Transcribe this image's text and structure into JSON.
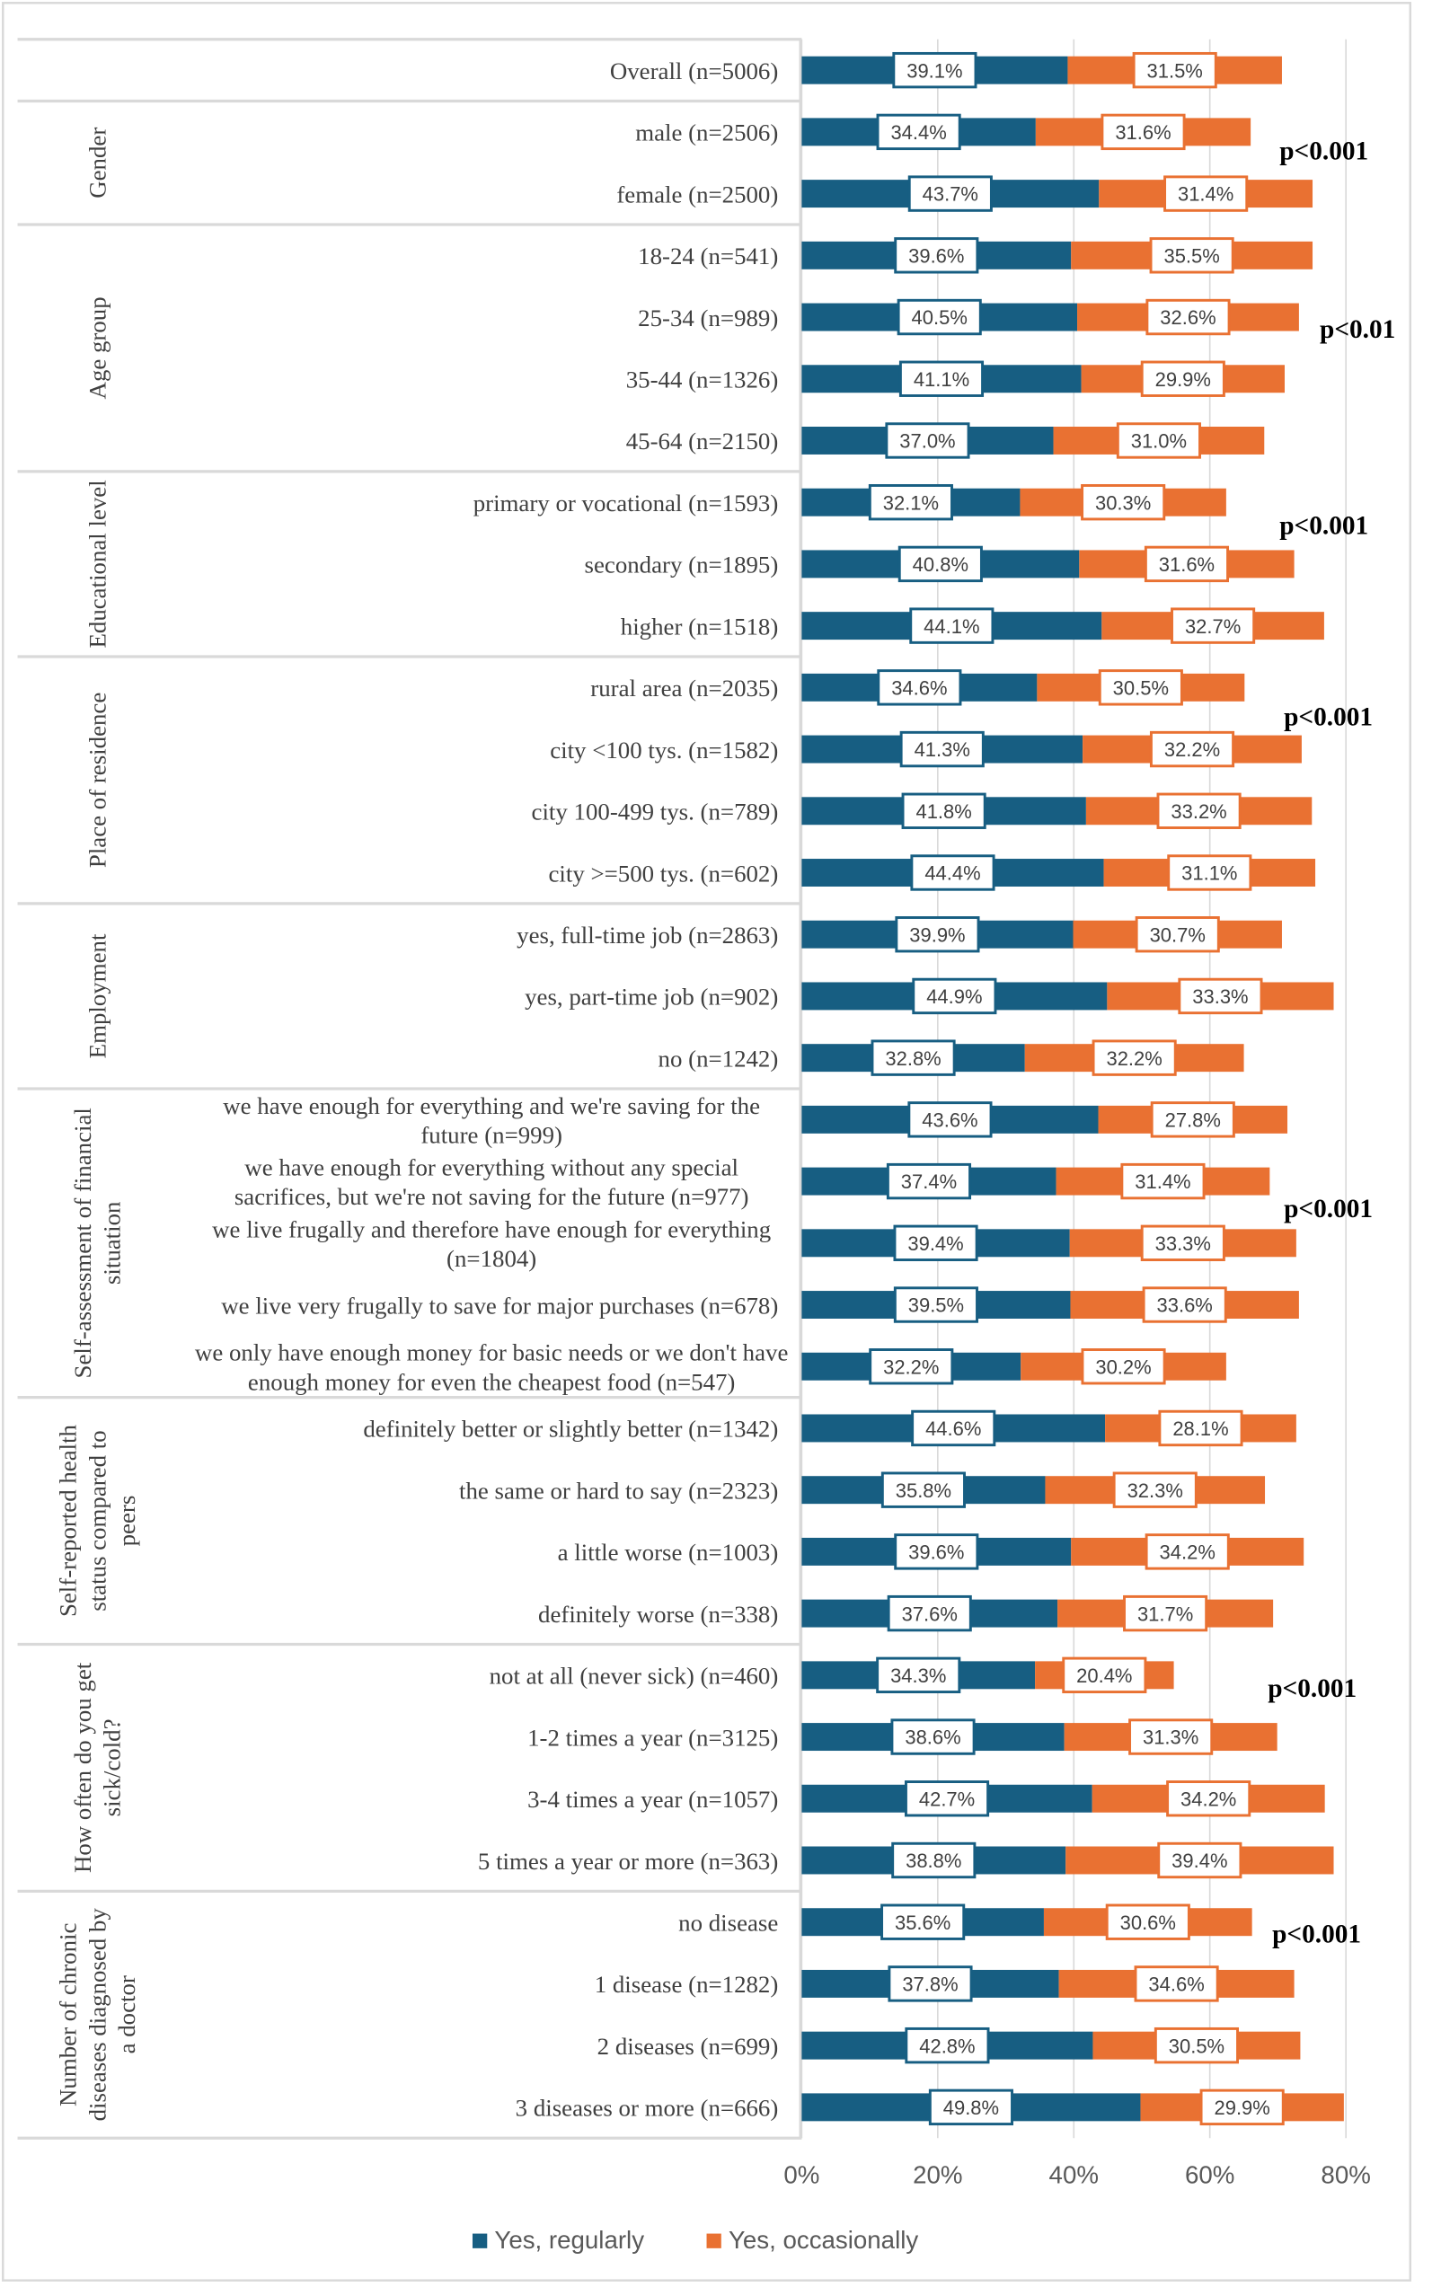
{
  "chart_data": {
    "type": "bar",
    "orientation": "horizontal",
    "stacked": true,
    "xlim": [
      0,
      80
    ],
    "x_ticks": [
      "0%",
      "20%",
      "40%",
      "60%",
      "80%"
    ],
    "grid": true,
    "legend_placement": "bottom",
    "series": [
      {
        "name": "Yes, regularly",
        "color": "#175E82"
      },
      {
        "name": "Yes, occasionally",
        "color": "#E97132"
      }
    ],
    "groups": [
      {
        "label": [],
        "p_value": "",
        "rows": [
          {
            "label": [
              "Overall (n=5006)"
            ],
            "regularly": 39.1,
            "occasionally": 31.5
          }
        ]
      },
      {
        "label": [
          "Gender"
        ],
        "p_value": "p<0.001",
        "rows": [
          {
            "label": [
              "male (n=2506)"
            ],
            "regularly": 34.4,
            "occasionally": 31.6
          },
          {
            "label": [
              "female (n=2500)"
            ],
            "regularly": 43.7,
            "occasionally": 31.4
          }
        ]
      },
      {
        "label": [
          "Age group"
        ],
        "p_value": "p<0.01",
        "rows": [
          {
            "label": [
              "18-24 (n=541)"
            ],
            "regularly": 39.6,
            "occasionally": 35.5
          },
          {
            "label": [
              "25-34 (n=989)"
            ],
            "regularly": 40.5,
            "occasionally": 32.6
          },
          {
            "label": [
              "35-44 (n=1326)"
            ],
            "regularly": 41.1,
            "occasionally": 29.9
          },
          {
            "label": [
              "45-64 (n=2150)"
            ],
            "regularly": 37.0,
            "occasionally": 31.0
          }
        ]
      },
      {
        "label": [
          "Educational level"
        ],
        "p_value": "p<0.001",
        "rows": [
          {
            "label": [
              "primary or vocational (n=1593)"
            ],
            "regularly": 32.1,
            "occasionally": 30.3
          },
          {
            "label": [
              "secondary (n=1895)"
            ],
            "regularly": 40.8,
            "occasionally": 31.6
          },
          {
            "label": [
              "higher (n=1518)"
            ],
            "regularly": 44.1,
            "occasionally": 32.7
          }
        ]
      },
      {
        "label": [
          "Place of residence"
        ],
        "p_value": "p<0.001",
        "rows": [
          {
            "label": [
              "rural area (n=2035)"
            ],
            "regularly": 34.6,
            "occasionally": 30.5
          },
          {
            "label": [
              "city <100 tys. (n=1582)"
            ],
            "regularly": 41.3,
            "occasionally": 32.2
          },
          {
            "label": [
              "city 100-499 tys. (n=789)"
            ],
            "regularly": 41.8,
            "occasionally": 33.2
          },
          {
            "label": [
              "city >=500 tys. (n=602)"
            ],
            "regularly": 44.4,
            "occasionally": 31.1
          }
        ]
      },
      {
        "label": [
          "Employment"
        ],
        "p_value": "",
        "rows": [
          {
            "label": [
              "yes, full-time job (n=2863)"
            ],
            "regularly": 39.9,
            "occasionally": 30.7
          },
          {
            "label": [
              "yes, part-time job (n=902)"
            ],
            "regularly": 44.9,
            "occasionally": 33.3
          },
          {
            "label": [
              "no (n=1242)"
            ],
            "regularly": 32.8,
            "occasionally": 32.2
          }
        ]
      },
      {
        "label": [
          "Self-assessment of financial",
          "situation"
        ],
        "p_value": "p<0.001",
        "rows": [
          {
            "label": [
              "we have enough for everything and we're saving for the",
              "future (n=999)"
            ],
            "regularly": 43.6,
            "occasionally": 27.8
          },
          {
            "label": [
              "we have enough for everything without any special",
              "sacrifices, but we're not saving for the future (n=977)"
            ],
            "regularly": 37.4,
            "occasionally": 31.4
          },
          {
            "label": [
              "we live frugally and therefore have enough for everything",
              "(n=1804)"
            ],
            "regularly": 39.4,
            "occasionally": 33.3
          },
          {
            "label": [
              "we live very frugally to save for major purchases (n=678)"
            ],
            "regularly": 39.5,
            "occasionally": 33.6
          },
          {
            "label": [
              "we only have enough money for basic needs or we don't have",
              "enough money for even the cheapest food (n=547)"
            ],
            "regularly": 32.2,
            "occasionally": 30.2
          }
        ]
      },
      {
        "label": [
          "Self-reported health",
          "status compared to",
          "peers"
        ],
        "p_value": "",
        "rows": [
          {
            "label": [
              "definitely better or slightly better (n=1342)"
            ],
            "regularly": 44.6,
            "occasionally": 28.1
          },
          {
            "label": [
              "the same or hard to say (n=2323)"
            ],
            "regularly": 35.8,
            "occasionally": 32.3
          },
          {
            "label": [
              "a little worse (n=1003)"
            ],
            "regularly": 39.6,
            "occasionally": 34.2
          },
          {
            "label": [
              "definitely worse (n=338)"
            ],
            "regularly": 37.6,
            "occasionally": 31.7
          }
        ]
      },
      {
        "label": [
          "How often do you get",
          "sick/cold?"
        ],
        "p_value": "p<0.001",
        "rows": [
          {
            "label": [
              "not at all (never sick) (n=460)"
            ],
            "regularly": 34.3,
            "occasionally": 20.4
          },
          {
            "label": [
              "1-2 times a year (n=3125)"
            ],
            "regularly": 38.6,
            "occasionally": 31.3
          },
          {
            "label": [
              "3-4 times a year (n=1057)"
            ],
            "regularly": 42.7,
            "occasionally": 34.2
          },
          {
            "label": [
              "5 times a year or more (n=363)"
            ],
            "regularly": 38.8,
            "occasionally": 39.4
          }
        ]
      },
      {
        "label": [
          "Number of chronic",
          "diseases diagnosed by",
          "a doctor"
        ],
        "p_value": "p<0.001",
        "rows": [
          {
            "label": [
              "no disease"
            ],
            "regularly": 35.6,
            "occasionally": 30.6
          },
          {
            "label": [
              "1 disease (n=1282)"
            ],
            "regularly": 37.8,
            "occasionally": 34.6
          },
          {
            "label": [
              "2 diseases (n=699)"
            ],
            "regularly": 42.8,
            "occasionally": 30.5
          },
          {
            "label": [
              "3 diseases or more (n=666)"
            ],
            "regularly": 49.8,
            "occasionally": 29.9
          }
        ]
      }
    ]
  }
}
